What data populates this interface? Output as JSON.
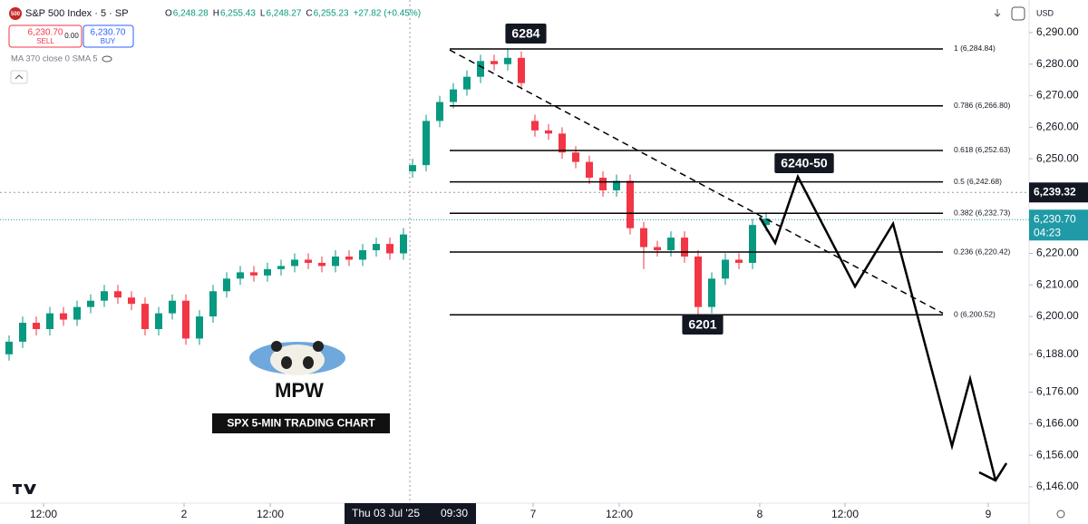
{
  "header": {
    "badge": "500",
    "symbol": "S&P 500 Index · 5 · SP",
    "ohlc": [
      {
        "key": "O",
        "value": "6,248.28"
      },
      {
        "key": "H",
        "value": "6,255.43"
      },
      {
        "key": "L",
        "value": "6,248.27"
      },
      {
        "key": "C",
        "value": "6,255.23"
      }
    ],
    "change": "+27.82 (+0.45%)",
    "sell": {
      "price": "6,230.70",
      "label": "SELL"
    },
    "spread": "0.00",
    "buy": {
      "price": "6,230.70",
      "label": "BUY"
    },
    "indicator": "MA 370 close 0 SMA 5",
    "currency": "USD"
  },
  "watermark": {
    "name": "MPW",
    "caption": "SPX 5-MIN TRADING CHART"
  },
  "chart_data": {
    "type": "candlestick",
    "grid": false,
    "up_color": "#089981",
    "down_color": "#f23645",
    "x": [
      2,
      5,
      8,
      11,
      14,
      17,
      20,
      23,
      26,
      29,
      32,
      35,
      38,
      41,
      44,
      47,
      50,
      53,
      56,
      59,
      62,
      65,
      68,
      71,
      74,
      77,
      80,
      83,
      86,
      89,
      91,
      94,
      97,
      100,
      103,
      106,
      109,
      112,
      115,
      118,
      121,
      124,
      127,
      130,
      133,
      136,
      139,
      142,
      145,
      148,
      151,
      154,
      157,
      160,
      163,
      166,
      169
    ],
    "open": [
      6188,
      6192,
      6198,
      6196,
      6201,
      6199,
      6203,
      6205,
      6208,
      6206,
      6204,
      6196,
      6201,
      6205,
      6193,
      6200,
      6208,
      6212,
      6214,
      6213,
      6215,
      6216,
      6218,
      6217,
      6216,
      6219,
      6218,
      6221,
      6223,
      6220,
      6246,
      6248,
      6262,
      6268,
      6272,
      6276,
      6281,
      6280,
      6282,
      6262,
      6259,
      6258,
      6252,
      6249,
      6244,
      6240,
      6243,
      6228,
      6222,
      6221,
      6225,
      6219,
      6203,
      6212,
      6218,
      6217,
      6229
    ],
    "high": [
      6194,
      6200,
      6200,
      6203,
      6203,
      6205,
      6207,
      6210,
      6210,
      6208,
      6206,
      6203,
      6207,
      6207,
      6202,
      6210,
      6214,
      6216,
      6216,
      6217,
      6218,
      6220,
      6220,
      6219,
      6221,
      6221,
      6223,
      6225,
      6225,
      6228,
      6250,
      6264,
      6270,
      6274,
      6278,
      6283,
      6283,
      6284.84,
      6284,
      6264,
      6261,
      6260,
      6254,
      6251,
      6246,
      6245,
      6245,
      6230,
      6224,
      6227,
      6227,
      6221,
      6214,
      6220,
      6220,
      6231,
      6233
    ],
    "low": [
      6186,
      6190,
      6194,
      6194,
      6197,
      6197,
      6201,
      6203,
      6204,
      6202,
      6194,
      6194,
      6199,
      6191,
      6191,
      6198,
      6206,
      6210,
      6211,
      6211,
      6213,
      6214,
      6215,
      6214,
      6214,
      6216,
      6216,
      6219,
      6218,
      6218,
      6244,
      6246,
      6260,
      6266,
      6270,
      6274,
      6278,
      6278,
      6272,
      6257,
      6256,
      6250,
      6247,
      6242,
      6238,
      6238,
      6226,
      6215,
      6219,
      6219,
      6217,
      6200.52,
      6201,
      6210,
      6215,
      6215,
      6227
    ],
    "close": [
      6192,
      6198,
      6196,
      6201,
      6199,
      6203,
      6205,
      6208,
      6206,
      6204,
      6196,
      6201,
      6205,
      6193,
      6200,
      6208,
      6212,
      6214,
      6213,
      6215,
      6216,
      6218,
      6217,
      6216,
      6219,
      6218,
      6221,
      6223,
      6220,
      6226,
      6248,
      6262,
      6268,
      6272,
      6276,
      6281,
      6280,
      6282,
      6274,
      6259,
      6258,
      6252,
      6249,
      6244,
      6240,
      6243,
      6228,
      6222,
      6221,
      6225,
      6219,
      6203,
      6212,
      6218,
      6217,
      6229,
      6231
    ],
    "xlim": [
      0,
      227
    ],
    "ylim": [
      6140.8,
      6300.35
    ],
    "xticks": [
      {
        "value": 9.6,
        "label": "12:00"
      },
      {
        "value": 40.6,
        "label": "2"
      },
      {
        "value": 59.6,
        "label": "12:00"
      },
      {
        "value": 117.6,
        "label": "7"
      },
      {
        "value": 136.6,
        "label": "12:00"
      },
      {
        "value": 167.6,
        "label": "8"
      },
      {
        "value": 186.4,
        "label": "12:00"
      },
      {
        "value": 218,
        "label": "9"
      }
    ],
    "yticks": [
      {
        "value": 6290,
        "label": "6,290.00"
      },
      {
        "value": 6280,
        "label": "6,280.00"
      },
      {
        "value": 6270,
        "label": "6,270.00"
      },
      {
        "value": 6260,
        "label": "6,260.00"
      },
      {
        "value": 6250,
        "label": "6,250.00"
      },
      {
        "value": 6220,
        "label": "6,220.00"
      },
      {
        "value": 6210,
        "label": "6,210.00"
      },
      {
        "value": 6200,
        "label": "6,200.00"
      },
      {
        "value": 6188,
        "label": "6,188.00"
      },
      {
        "value": 6176,
        "label": "6,176.00"
      },
      {
        "value": 6166,
        "label": "6,166.00"
      },
      {
        "value": 6156,
        "label": "6,156.00"
      },
      {
        "value": 6146,
        "label": "6,146.00"
      }
    ],
    "fib_levels": [
      {
        "value": 6284.84,
        "label": "1 (6,284.84)"
      },
      {
        "value": 6266.8,
        "label": "0.786 (6,266.80)"
      },
      {
        "value": 6252.63,
        "label": "0.618 (6,252.63)"
      },
      {
        "value": 6242.68,
        "label": "0.5 (6,242.68)"
      },
      {
        "value": 6232.73,
        "label": "0.382 (6,232.73)"
      },
      {
        "value": 6220.42,
        "label": "0.236 (6,220.42)"
      },
      {
        "value": 6200.52,
        "label": "0 (6,200.52)"
      }
    ],
    "fib_x": [
      99.2,
      208
    ],
    "trendline": {
      "x": [
        99.2,
        208
      ],
      "y": [
        6284.5,
        6201
      ]
    },
    "projection": {
      "x": [
        167.6,
        171,
        176,
        188.6,
        197,
        210,
        214,
        219.6
      ],
      "y": [
        6231.4,
        6223.3,
        6244.3,
        6209.5,
        6229.4,
        6158.9,
        6180.2,
        6148.0
      ]
    },
    "annotations": [
      "6284",
      "6240-50",
      "6201"
    ],
    "crosshair": {
      "x": 90.4,
      "x_label": "Thu 03 Jul '25",
      "time_label": "09:30",
      "y": 6239.32,
      "y_label": "6,239.32"
    },
    "last_price": {
      "value": 6230.7,
      "label": "6,230.70",
      "countdown": "04:23",
      "color": "#1f9aa6"
    }
  }
}
